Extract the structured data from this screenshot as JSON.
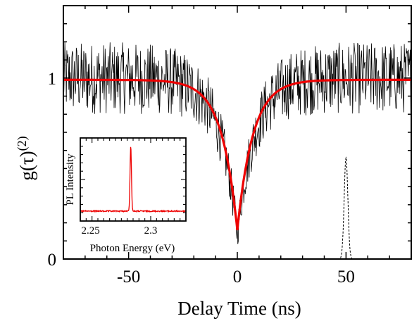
{
  "chart_data": {
    "type": "line",
    "xlabel": "Delay Time (ns)",
    "ylabel": "g(τ)(2)",
    "xlim": [
      -80,
      80
    ],
    "ylim": [
      0,
      1.4
    ],
    "x_ticks": [
      -50,
      0,
      50
    ],
    "y_ticks": [
      0,
      1
    ],
    "grid": false,
    "series": [
      {
        "kind": "measured",
        "color": "#000000",
        "baseline": 1.0,
        "noise_amplitude": 0.2,
        "dip_width_ns": 8,
        "dip_min": 0.14
      },
      {
        "kind": "fit",
        "color": "#ee0000",
        "points": [
          [
            -80,
            0.99
          ],
          [
            -40,
            0.985
          ],
          [
            -25,
            0.94
          ],
          [
            -15,
            0.8
          ],
          [
            -10,
            0.62
          ],
          [
            -5,
            0.42
          ],
          [
            0,
            0.16
          ],
          [
            5,
            0.42
          ],
          [
            10,
            0.62
          ],
          [
            15,
            0.8
          ],
          [
            25,
            0.94
          ],
          [
            40,
            0.985
          ],
          [
            80,
            0.99
          ]
        ]
      },
      {
        "kind": "reference_pulse",
        "color": "#000000",
        "style": "dashed",
        "center": 50,
        "peak": 0.56,
        "width_ns": 1.2
      }
    ],
    "inset": {
      "type": "line",
      "xlabel": "Photon Energy (eV)",
      "ylabel": "PL Intensity",
      "x_ticks": [
        "2.25",
        "2.3"
      ],
      "xlim": [
        2.24,
        2.33
      ],
      "peak_energy": 2.283,
      "color": "#ee0000"
    }
  }
}
